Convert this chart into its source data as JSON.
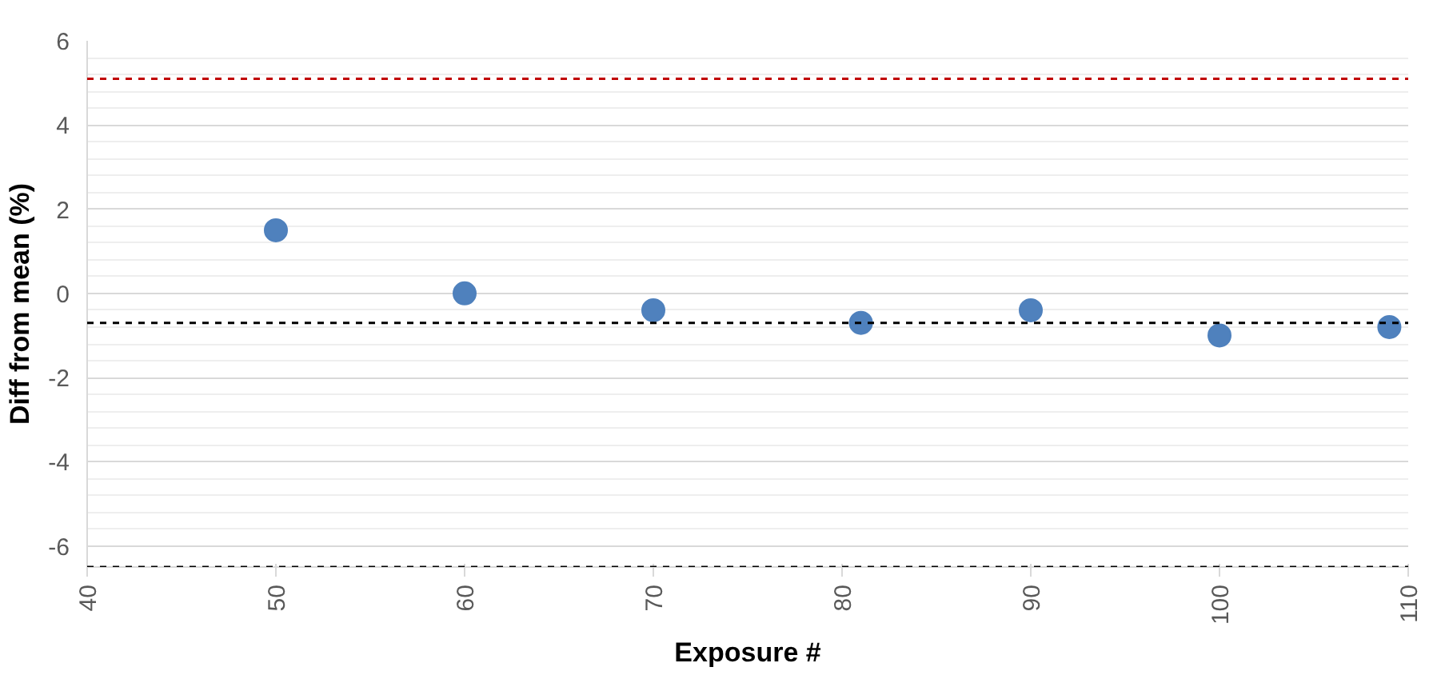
{
  "chart_data": {
    "type": "scatter",
    "xlabel": "Exposure #",
    "ylabel": "Diff from mean (%)",
    "x": [
      50,
      60,
      70,
      81,
      90,
      100,
      109
    ],
    "series": [
      {
        "color": "#4f81bd",
        "values": [
          1.5,
          0.0,
          -0.4,
          -0.7,
          -0.4,
          -1.0,
          -0.8
        ]
      }
    ],
    "xlim": [
      40,
      110
    ],
    "xticks": [
      40,
      50,
      60,
      70,
      80,
      90,
      100,
      110
    ],
    "ylim": [
      -6.5,
      6
    ],
    "yticks": [
      -6,
      -4,
      -2,
      0,
      2,
      4,
      6
    ],
    "ref_lines": [
      {
        "axis": "y",
        "value": 5.1,
        "color": "#c00000",
        "line_style": "dashed"
      },
      {
        "axis": "y",
        "value": -0.7,
        "color": "#000000",
        "line_style": "dashed"
      },
      {
        "axis": "y",
        "value": -6.5,
        "color": "#000000",
        "line_style": "dashed"
      }
    ],
    "grid": "y",
    "marker": "circle"
  }
}
